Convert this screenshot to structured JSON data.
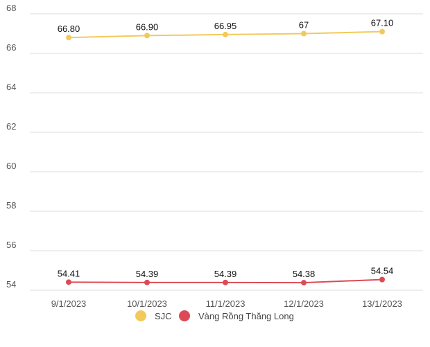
{
  "chart_data": {
    "type": "line",
    "title": "",
    "xlabel": "",
    "ylabel": "",
    "categories": [
      "9/1/2023",
      "10/1/2023",
      "11/1/2023",
      "12/1/2023",
      "13/1/2023"
    ],
    "ylim": [
      54,
      68
    ],
    "yticks": [
      "54",
      "56",
      "58",
      "60",
      "62",
      "64",
      "66",
      "68"
    ],
    "grid": true,
    "legend_position": "bottom",
    "series": [
      {
        "name": "SJC",
        "color": "#f2ca5c",
        "values": [
          66.8,
          66.9,
          66.95,
          67,
          67.1
        ],
        "labels": [
          "66.80",
          "66.90",
          "66.95",
          "67",
          "67.10"
        ]
      },
      {
        "name": "Vàng Rồng Thăng Long",
        "color": "#dd4a55",
        "values": [
          54.41,
          54.39,
          54.39,
          54.38,
          54.54
        ],
        "labels": [
          "54.41",
          "54.39",
          "54.39",
          "54.38",
          "54.54"
        ]
      }
    ]
  }
}
